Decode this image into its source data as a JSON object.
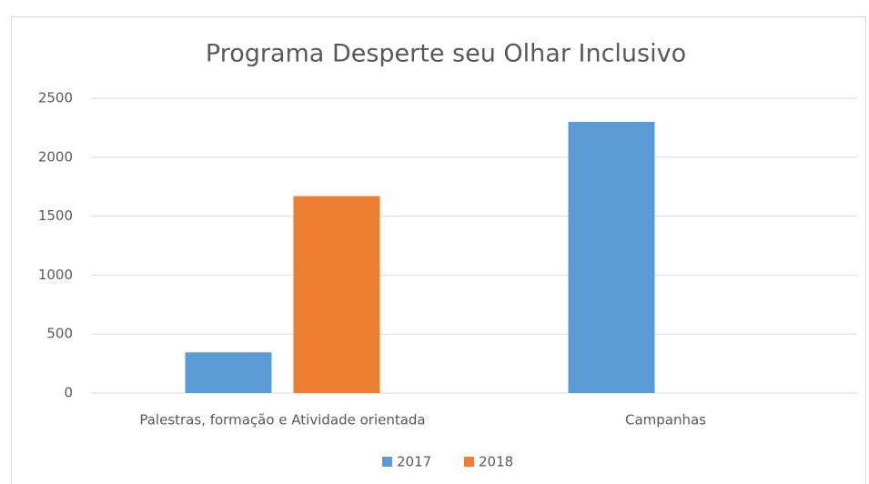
{
  "chart_data": {
    "type": "bar",
    "title": "Programa Desperte seu Olhar Inclusivo",
    "categories": [
      "Palestras, formação e Atividade orientada",
      "Campanhas"
    ],
    "series": [
      {
        "name": "2017",
        "color": "#5b9bd5",
        "values": [
          345,
          2300
        ]
      },
      {
        "name": "2018",
        "color": "#ed7d31",
        "values": [
          1670,
          null
        ]
      }
    ],
    "ylim": [
      0,
      2500
    ],
    "yticks": [
      0,
      500,
      1000,
      1500,
      2000,
      2500
    ],
    "grid": true,
    "legend": "bottom"
  }
}
